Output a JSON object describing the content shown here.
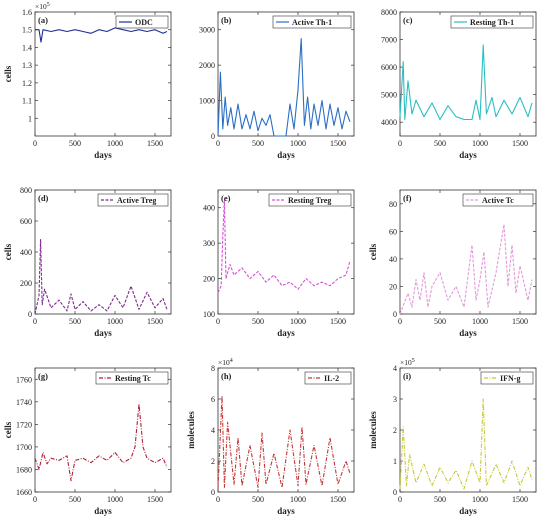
{
  "chart_data": [
    {
      "type": "line",
      "panel_label": "(a)",
      "legend": "ODC",
      "color": "#1f2f8f",
      "dash": "",
      "ylabel": "cells",
      "xlabel": "days",
      "multiplier": "×10",
      "exponent": "5",
      "xlim": [
        0,
        1700
      ],
      "ylim": [
        0.9,
        1.6
      ],
      "xticks": [
        0,
        500,
        1000,
        1500
      ],
      "xtick_labels": [
        "0",
        "500",
        "1000",
        "1500"
      ],
      "yticks": [
        1,
        1.1,
        1.2,
        1.3,
        1.4,
        1.5,
        1.6
      ],
      "ytick_labels": [
        "1",
        "1.1",
        "1.2",
        "1.3",
        "1.4",
        "1.5",
        "1.6"
      ],
      "x": [
        0,
        50,
        75,
        100,
        200,
        300,
        400,
        500,
        600,
        700,
        800,
        900,
        1000,
        1100,
        1200,
        1300,
        1400,
        1500,
        1600,
        1650
      ],
      "y": [
        1.5,
        1.5,
        1.43,
        1.5,
        1.49,
        1.5,
        1.49,
        1.5,
        1.49,
        1.48,
        1.5,
        1.49,
        1.51,
        1.5,
        1.49,
        1.5,
        1.49,
        1.5,
        1.48,
        1.49
      ]
    },
    {
      "type": "line",
      "panel_label": "(b)",
      "legend": "Active Th-1",
      "color": "#2a6fc4",
      "dash": "",
      "ylabel": "",
      "xlabel": "days",
      "multiplier": "",
      "exponent": "",
      "xlim": [
        0,
        1700
      ],
      "ylim": [
        0,
        3500
      ],
      "xticks": [
        0,
        500,
        1000,
        1500
      ],
      "xtick_labels": [
        "0",
        "500",
        "1000",
        "1500"
      ],
      "yticks": [
        0,
        1000,
        2000,
        3000
      ],
      "ytick_labels": [
        "0",
        "1000",
        "2000",
        "3000"
      ],
      "x": [
        0,
        30,
        60,
        90,
        120,
        160,
        200,
        250,
        300,
        350,
        400,
        450,
        500,
        550,
        600,
        650,
        700,
        850,
        900,
        950,
        1000,
        1040,
        1080,
        1120,
        1160,
        1200,
        1250,
        1300,
        1350,
        1400,
        1450,
        1500,
        1550,
        1600,
        1650
      ],
      "y": [
        0,
        1800,
        200,
        1100,
        300,
        800,
        200,
        900,
        200,
        600,
        200,
        700,
        150,
        500,
        300,
        600,
        0,
        0,
        900,
        200,
        1300,
        2750,
        300,
        1100,
        200,
        900,
        300,
        1000,
        200,
        900,
        300,
        800,
        200,
        700,
        400
      ]
    },
    {
      "type": "line",
      "panel_label": "(c)",
      "legend": "Resting Th-1",
      "color": "#2bbfc4",
      "dash": "",
      "ylabel": "",
      "xlabel": "days",
      "multiplier": "",
      "exponent": "",
      "xlim": [
        0,
        1700
      ],
      "ylim": [
        3500,
        8000
      ],
      "xticks": [
        0,
        500,
        1000,
        1500
      ],
      "xtick_labels": [
        "0",
        "500",
        "1000",
        "1500"
      ],
      "yticks": [
        4000,
        5000,
        6000,
        7000,
        8000
      ],
      "ytick_labels": [
        "4000",
        "5000",
        "6000",
        "7000",
        "8000"
      ],
      "x": [
        0,
        40,
        60,
        100,
        150,
        200,
        300,
        400,
        500,
        600,
        700,
        800,
        900,
        950,
        1000,
        1040,
        1080,
        1150,
        1200,
        1300,
        1400,
        1500,
        1600,
        1650
      ],
      "y": [
        4200,
        6200,
        4100,
        5500,
        4300,
        4800,
        4200,
        4700,
        4100,
        4600,
        4200,
        4100,
        4100,
        4800,
        4100,
        6800,
        4300,
        4900,
        4200,
        4800,
        4300,
        4900,
        4200,
        4700
      ]
    },
    {
      "type": "line",
      "panel_label": "(d)",
      "legend": "Active Treg",
      "color": "#7b2a8f",
      "dash": "3,1.5",
      "ylabel": "cells",
      "xlabel": "days",
      "multiplier": "",
      "exponent": "",
      "xlim": [
        0,
        1700
      ],
      "ylim": [
        0,
        800
      ],
      "xticks": [
        0,
        500,
        1000,
        1500
      ],
      "xtick_labels": [
        "0",
        "500",
        "1000",
        "1500"
      ],
      "yticks": [
        0,
        200,
        400,
        600,
        800
      ],
      "ytick_labels": [
        "0",
        "200",
        "400",
        "600",
        "800"
      ],
      "x": [
        0,
        50,
        70,
        90,
        120,
        200,
        300,
        400,
        450,
        500,
        600,
        700,
        800,
        900,
        1000,
        1100,
        1200,
        1300,
        1400,
        1500,
        1600,
        1650
      ],
      "y": [
        0,
        120,
        480,
        60,
        160,
        40,
        90,
        20,
        130,
        30,
        80,
        20,
        60,
        20,
        120,
        40,
        180,
        30,
        140,
        40,
        100,
        30
      ]
    },
    {
      "type": "line",
      "panel_label": "(e)",
      "legend": "Resting Treg",
      "color": "#d64fd6",
      "dash": "3,1.5",
      "ylabel": "",
      "xlabel": "days",
      "multiplier": "",
      "exponent": "",
      "xlim": [
        0,
        1700
      ],
      "ylim": [
        100,
        450
      ],
      "xticks": [
        0,
        500,
        1000,
        1500
      ],
      "xtick_labels": [
        "0",
        "500",
        "1000",
        "1500"
      ],
      "yticks": [
        100,
        200,
        300,
        400
      ],
      "ytick_labels": [
        "100",
        "200",
        "300",
        "400"
      ],
      "x": [
        0,
        40,
        60,
        80,
        100,
        150,
        200,
        300,
        400,
        500,
        600,
        700,
        800,
        900,
        1000,
        1100,
        1200,
        1300,
        1400,
        1500,
        1600,
        1650
      ],
      "y": [
        160,
        180,
        320,
        420,
        200,
        240,
        210,
        230,
        200,
        220,
        190,
        210,
        180,
        190,
        170,
        200,
        180,
        190,
        180,
        200,
        210,
        250
      ]
    },
    {
      "type": "line",
      "panel_label": "(f)",
      "legend": "Active Tc",
      "color": "#e39ad8",
      "dash": "3,1.5",
      "ylabel": "cells",
      "xlabel": "days",
      "multiplier": "",
      "exponent": "",
      "xlim": [
        0,
        1700
      ],
      "ylim": [
        0,
        90
      ],
      "xticks": [
        0,
        500,
        1000,
        1500
      ],
      "xtick_labels": [
        "0",
        "500",
        "1000",
        "1500"
      ],
      "yticks": [
        0,
        20,
        40,
        60,
        80
      ],
      "ytick_labels": [
        "0",
        "20",
        "40",
        "60",
        "80"
      ],
      "x": [
        0,
        100,
        150,
        200,
        250,
        300,
        350,
        400,
        500,
        600,
        700,
        800,
        900,
        950,
        1000,
        1050,
        1100,
        1200,
        1300,
        1350,
        1400,
        1450,
        1500,
        1600,
        1650
      ],
      "y": [
        0,
        15,
        5,
        25,
        10,
        30,
        5,
        20,
        30,
        10,
        20,
        5,
        50,
        10,
        25,
        45,
        5,
        30,
        65,
        20,
        50,
        15,
        35,
        10,
        25
      ]
    },
    {
      "type": "line",
      "panel_label": "(g)",
      "legend": "Resting Tc",
      "color": "#b01e3a",
      "dash": "4,1.5,1,1.5",
      "ylabel": "cells",
      "xlabel": "days",
      "multiplier": "",
      "exponent": "",
      "xlim": [
        0,
        1700
      ],
      "ylim": [
        1660,
        1770
      ],
      "xticks": [
        0,
        500,
        1000,
        1500
      ],
      "xtick_labels": [
        "0",
        "500",
        "1000",
        "1500"
      ],
      "yticks": [
        1660,
        1680,
        1700,
        1720,
        1740,
        1760
      ],
      "ytick_labels": [
        "1660",
        "1680",
        "1700",
        "1720",
        "1740",
        "1760"
      ],
      "x": [
        0,
        50,
        100,
        150,
        200,
        300,
        400,
        450,
        500,
        600,
        700,
        800,
        900,
        1000,
        1100,
        1200,
        1250,
        1300,
        1350,
        1400,
        1500,
        1600,
        1650
      ],
      "y": [
        1690,
        1680,
        1695,
        1685,
        1690,
        1688,
        1692,
        1670,
        1688,
        1690,
        1686,
        1692,
        1688,
        1695,
        1686,
        1690,
        1700,
        1738,
        1700,
        1690,
        1686,
        1690,
        1682
      ]
    },
    {
      "type": "line",
      "panel_label": "(h)",
      "legend": "IL-2",
      "color": "#c43838",
      "dash": "4,1.5,1,1.5",
      "ylabel": "molecules",
      "xlabel": "days",
      "multiplier": "×10",
      "exponent": "4",
      "xlim": [
        0,
        1700
      ],
      "ylim": [
        0,
        8
      ],
      "xticks": [
        0,
        500,
        1000,
        1500
      ],
      "xtick_labels": [
        "0",
        "500",
        "1000",
        "1500"
      ],
      "yticks": [
        0,
        2,
        4,
        6,
        8
      ],
      "ytick_labels": [
        "0",
        "2",
        "4",
        "6",
        "8"
      ],
      "x": [
        0,
        50,
        80,
        120,
        200,
        250,
        300,
        400,
        500,
        550,
        600,
        700,
        800,
        900,
        1000,
        1050,
        1100,
        1200,
        1300,
        1400,
        1500,
        1600,
        1650
      ],
      "y": [
        0.2,
        6.2,
        0.3,
        4.5,
        0.5,
        3.5,
        0.4,
        3.0,
        0.3,
        3.8,
        0.5,
        2.5,
        0.3,
        4.0,
        0.4,
        4.2,
        0.5,
        3.0,
        0.4,
        3.5,
        0.5,
        2.0,
        1.2
      ]
    },
    {
      "type": "line",
      "panel_label": "(i)",
      "legend": "IFN-g",
      "color": "#c8c83a",
      "dash": "4,1.5,1,1.5",
      "ylabel": "molecules",
      "xlabel": "days",
      "multiplier": "×10",
      "exponent": "5",
      "xlim": [
        0,
        1700
      ],
      "ylim": [
        0,
        4
      ],
      "xticks": [
        0,
        500,
        1000,
        1500
      ],
      "xtick_labels": [
        "0",
        "500",
        "1000",
        "1500"
      ],
      "yticks": [
        0,
        1,
        2,
        3,
        4
      ],
      "ytick_labels": [
        "0",
        "1",
        "2",
        "3",
        "4"
      ],
      "x": [
        0,
        40,
        80,
        120,
        200,
        300,
        400,
        500,
        600,
        700,
        800,
        900,
        1000,
        1040,
        1080,
        1200,
        1300,
        1400,
        1500,
        1600,
        1650
      ],
      "y": [
        0.1,
        2.1,
        0.2,
        1.2,
        0.3,
        0.9,
        0.2,
        0.8,
        0.3,
        0.7,
        0.1,
        1.0,
        0.3,
        3.0,
        0.2,
        0.9,
        0.3,
        1.0,
        0.2,
        0.8,
        0.4
      ]
    }
  ]
}
